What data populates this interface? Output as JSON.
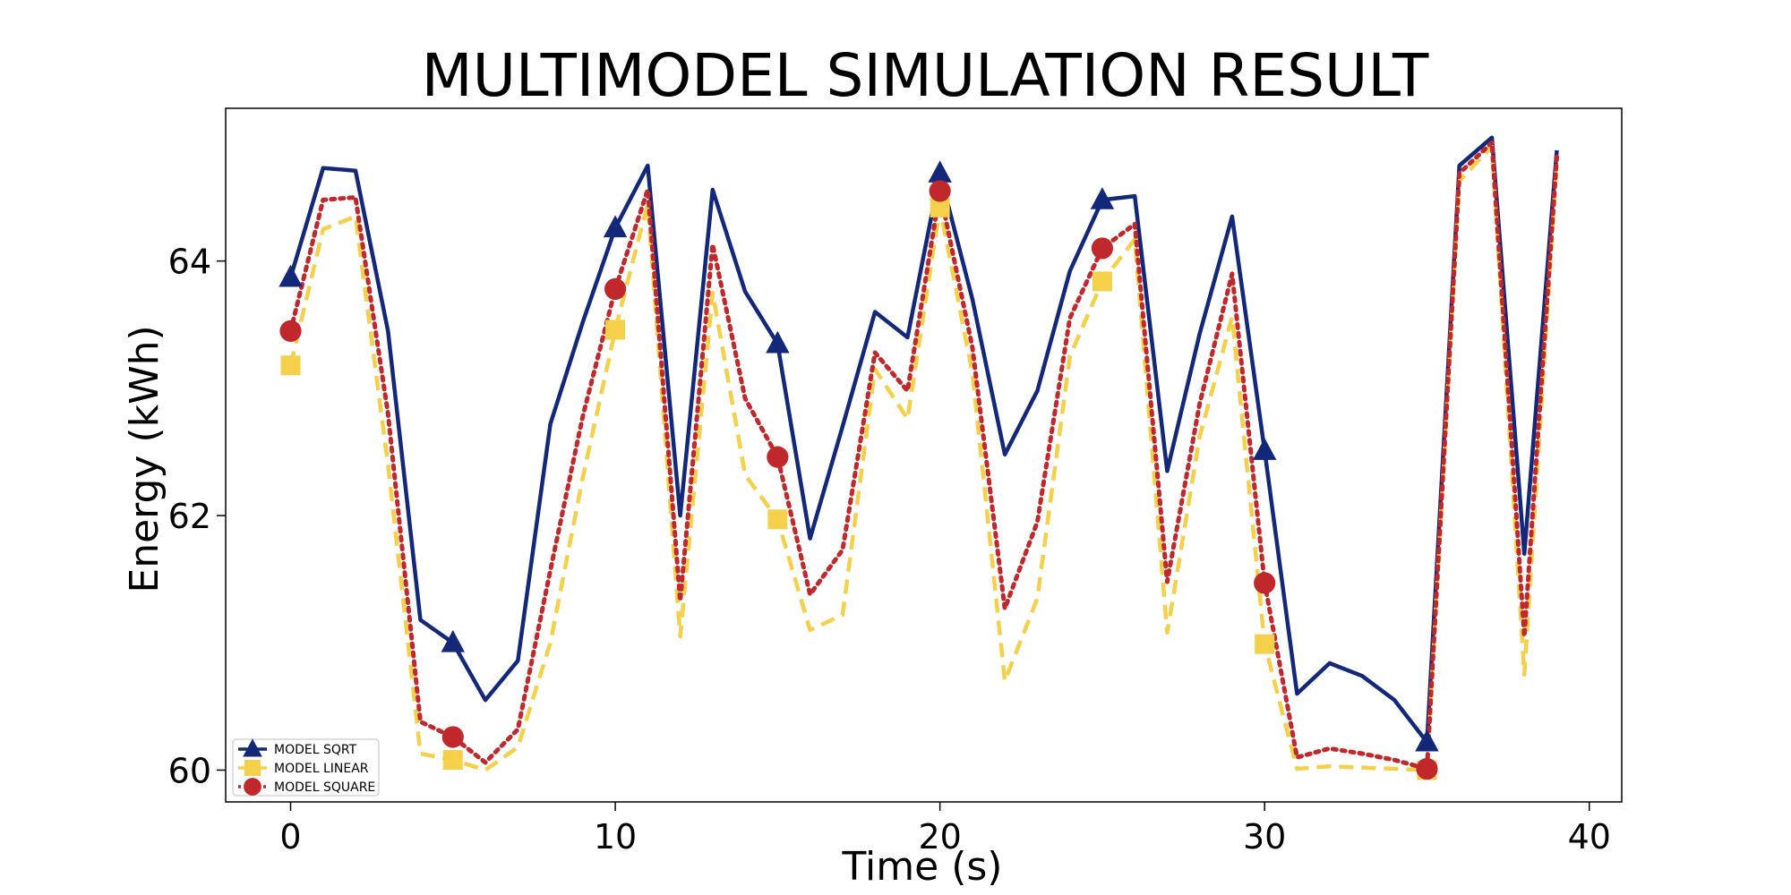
{
  "chart_data": {
    "type": "line",
    "title": "MULTIMODEL SIMULATION RESULT",
    "xlabel": "Time (s)",
    "ylabel": "Energy (kWh)",
    "xlim": [
      -2,
      41
    ],
    "ylim": [
      59.75,
      65.2
    ],
    "xticks": [
      0,
      10,
      20,
      30,
      40
    ],
    "yticks": [
      60,
      62,
      64
    ],
    "grid": false,
    "legend_position": "lower-left",
    "marker_every": 5,
    "x": [
      0,
      1,
      2,
      3,
      4,
      5,
      6,
      7,
      8,
      9,
      10,
      11,
      12,
      13,
      14,
      15,
      16,
      17,
      18,
      19,
      20,
      21,
      22,
      23,
      24,
      25,
      26,
      27,
      28,
      29,
      30,
      31,
      32,
      33,
      34,
      35,
      36,
      37,
      38,
      39
    ],
    "series": [
      {
        "name": "MODEL SQRT",
        "color": "#14287a",
        "style": "solid",
        "marker": "triangle",
        "values": [
          63.87,
          64.73,
          64.71,
          63.45,
          61.18,
          61.0,
          60.55,
          60.86,
          62.72,
          63.52,
          64.26,
          64.75,
          62.0,
          64.56,
          63.76,
          63.35,
          61.82,
          62.7,
          63.6,
          63.4,
          64.69,
          63.7,
          62.48,
          62.98,
          63.92,
          64.48,
          64.51,
          62.35,
          63.43,
          64.35,
          62.51,
          60.6,
          60.84,
          60.74,
          60.55,
          60.22,
          64.75,
          64.97,
          61.7,
          64.87
        ]
      },
      {
        "name": "MODEL LINEAR",
        "color": "#f5d04a",
        "style": "dashed",
        "marker": "square",
        "values": [
          63.18,
          64.25,
          64.35,
          62.4,
          60.13,
          60.08,
          60.0,
          60.18,
          61.0,
          62.3,
          63.46,
          64.45,
          61.05,
          63.75,
          62.32,
          61.97,
          61.1,
          61.22,
          63.15,
          62.76,
          64.42,
          63.12,
          60.7,
          61.35,
          63.25,
          63.84,
          64.17,
          61.08,
          62.62,
          63.56,
          60.99,
          60.01,
          60.03,
          60.02,
          60.01,
          60.0,
          64.63,
          64.9,
          60.75,
          64.78
        ]
      },
      {
        "name": "MODEL SQUARE",
        "color": "#c0282c",
        "style": "dotted",
        "marker": "circle",
        "values": [
          63.45,
          64.48,
          64.5,
          62.8,
          60.38,
          60.26,
          60.06,
          60.32,
          61.57,
          62.78,
          63.78,
          64.56,
          61.33,
          64.13,
          62.92,
          62.46,
          61.38,
          61.73,
          63.28,
          62.98,
          64.55,
          63.32,
          61.27,
          61.95,
          63.55,
          64.1,
          64.29,
          61.48,
          62.88,
          63.9,
          61.47,
          60.1,
          60.17,
          60.13,
          60.08,
          60.01,
          64.69,
          64.93,
          61.05,
          64.82
        ]
      }
    ]
  }
}
